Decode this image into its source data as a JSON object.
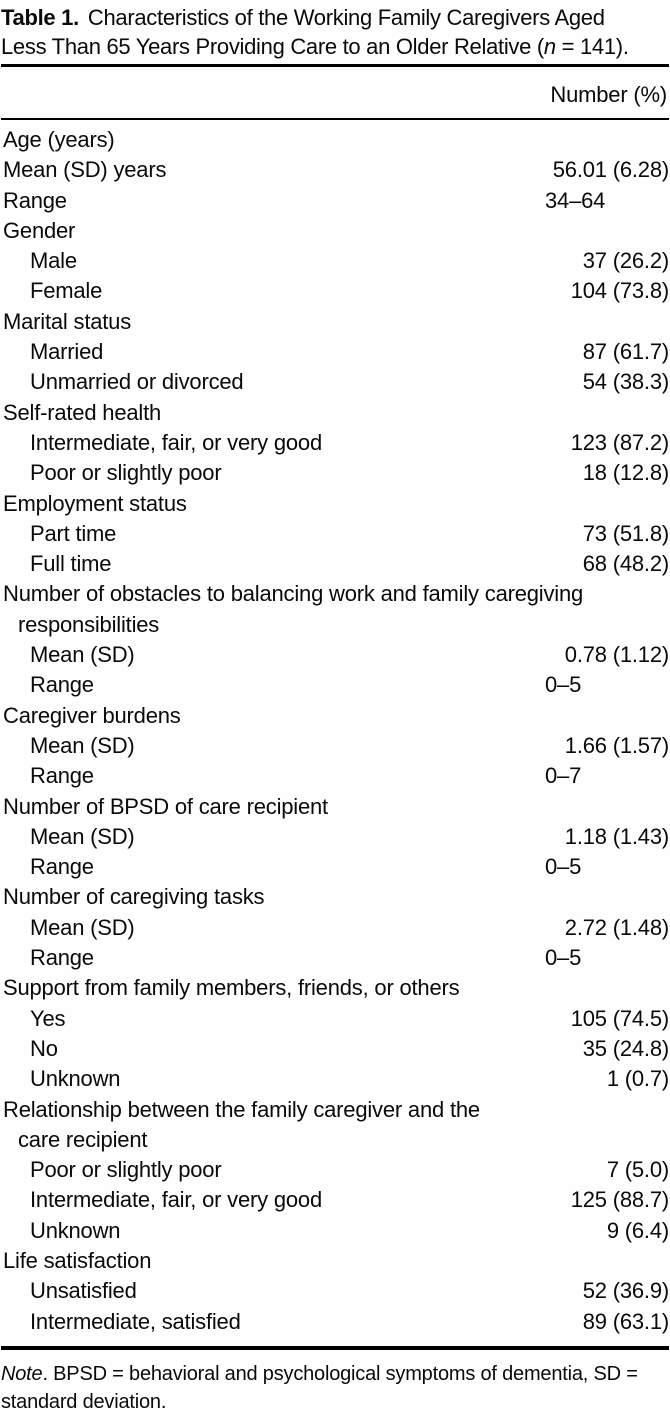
{
  "caption": {
    "label": "Table 1.",
    "line1_rest": "Characteristics of the Working Family Caregivers Aged",
    "line2_pre": "Less Than 65 Years Providing Care to an Older Relative (",
    "n_italic": "n",
    "line2_post": " = 141)."
  },
  "table": {
    "value_header": "Number (%)",
    "rows": [
      {
        "label": "Age (years)",
        "indent": 0
      },
      {
        "label": "Mean (SD) years",
        "indent": 0,
        "value": "56.01 (6.28)",
        "align": "right"
      },
      {
        "label": "Range",
        "indent": 0,
        "value": "34–64",
        "align": "left"
      },
      {
        "label": "Gender",
        "indent": 0
      },
      {
        "label": "Male",
        "indent": 1,
        "value": "37 (26.2)",
        "align": "right"
      },
      {
        "label": "Female",
        "indent": 1,
        "value": "104 (73.8)",
        "align": "right"
      },
      {
        "label": "Marital status",
        "indent": 0
      },
      {
        "label": "Married",
        "indent": 1,
        "value": "87 (61.7)",
        "align": "right"
      },
      {
        "label": "Unmarried or divorced",
        "indent": 1,
        "value": "54 (38.3)",
        "align": "right"
      },
      {
        "label": "Self-rated health",
        "indent": 0
      },
      {
        "label": "Intermediate, fair, or very good",
        "indent": 1,
        "value": "123 (87.2)",
        "align": "right"
      },
      {
        "label": "Poor or slightly poor",
        "indent": 1,
        "value": "18 (12.8)",
        "align": "right"
      },
      {
        "label": "Employment status",
        "indent": 0
      },
      {
        "label": "Part time",
        "indent": 1,
        "value": "73 (51.8)",
        "align": "right"
      },
      {
        "label": "Full time",
        "indent": 1,
        "value": "68 (48.2)",
        "align": "right"
      },
      {
        "label": "Number of obstacles to balancing work and family caregiving",
        "indent": 0
      },
      {
        "label": "responsibilities",
        "indent": 2
      },
      {
        "label": "Mean (SD)",
        "indent": 1,
        "value": "0.78 (1.12)",
        "align": "right"
      },
      {
        "label": "Range",
        "indent": 1,
        "value": "0–5",
        "align": "left"
      },
      {
        "label": "Caregiver burdens",
        "indent": 0
      },
      {
        "label": "Mean (SD)",
        "indent": 1,
        "value": "1.66 (1.57)",
        "align": "right"
      },
      {
        "label": "Range",
        "indent": 1,
        "value": "0–7",
        "align": "left"
      },
      {
        "label": "Number of BPSD of care recipient",
        "indent": 0
      },
      {
        "label": "Mean (SD)",
        "indent": 1,
        "value": "1.18 (1.43)",
        "align": "right"
      },
      {
        "label": "Range",
        "indent": 1,
        "value": "0–5",
        "align": "left"
      },
      {
        "label": "Number of caregiving tasks",
        "indent": 0
      },
      {
        "label": "Mean (SD)",
        "indent": 1,
        "value": "2.72 (1.48)",
        "align": "right"
      },
      {
        "label": "Range",
        "indent": 1,
        "value": "0–5",
        "align": "left"
      },
      {
        "label": "Support from family members, friends, or others",
        "indent": 0
      },
      {
        "label": "Yes",
        "indent": 1,
        "value": "105 (74.5)",
        "align": "right"
      },
      {
        "label": "No",
        "indent": 1,
        "value": "35 (24.8)",
        "align": "right"
      },
      {
        "label": "Unknown",
        "indent": 1,
        "value": "1 (0.7)",
        "align": "right"
      },
      {
        "label": "Relationship between the family caregiver and the",
        "indent": 0
      },
      {
        "label": "care recipient",
        "indent": 2
      },
      {
        "label": "Poor or slightly poor",
        "indent": 1,
        "value": "7 (5.0)",
        "align": "right"
      },
      {
        "label": "Intermediate, fair, or very good",
        "indent": 1,
        "value": "125 (88.7)",
        "align": "right"
      },
      {
        "label": "Unknown",
        "indent": 1,
        "value": "9 (6.4)",
        "align": "right"
      },
      {
        "label": "Life satisfaction",
        "indent": 0
      },
      {
        "label": "Unsatisfied",
        "indent": 1,
        "value": "52 (36.9)",
        "align": "right"
      },
      {
        "label": "Intermediate, satisfied",
        "indent": 1,
        "value": "89 (63.1)",
        "align": "right"
      }
    ]
  },
  "note": {
    "label": "Note",
    "line1": ". BPSD = behavioral and psychological symptoms of dementia, SD =",
    "line2": "standard deviation."
  },
  "colors": {
    "text": "#0a0a0a",
    "background": "#fefefe",
    "rule": "#000000"
  }
}
